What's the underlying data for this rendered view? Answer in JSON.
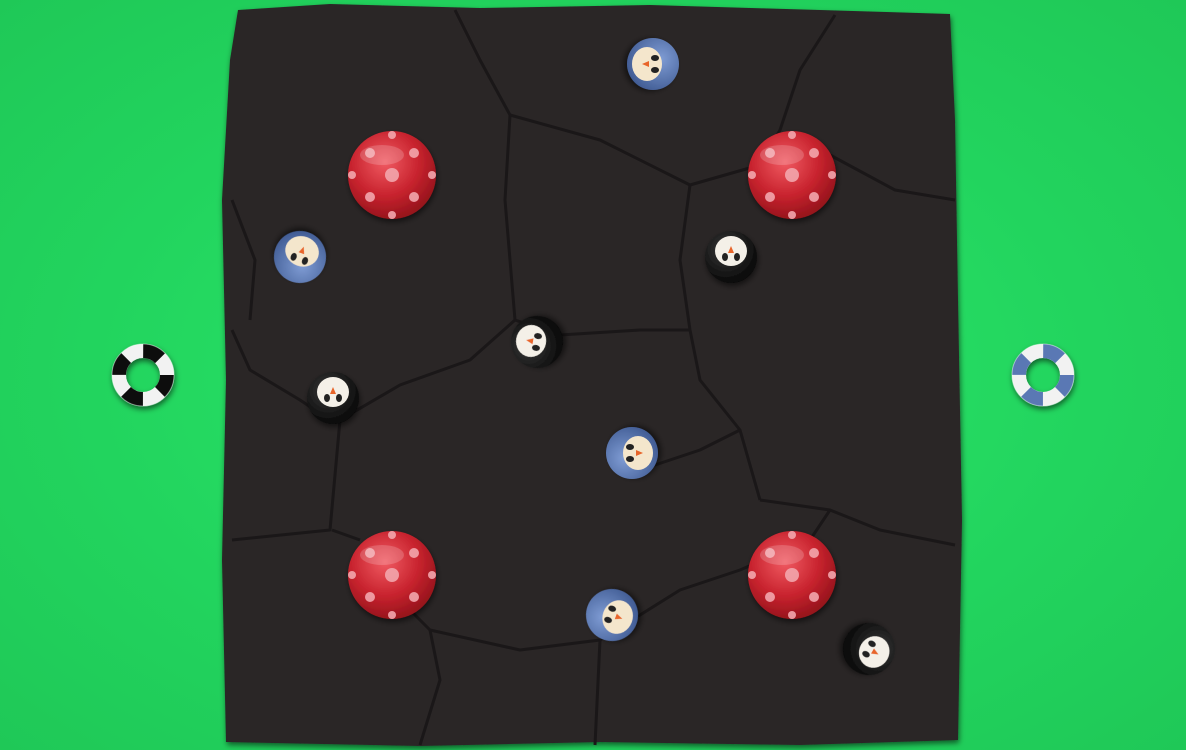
{
  "game": {
    "background_color": "#22d45e",
    "board_color": "#2a2627",
    "crack_color": "#1b1819",
    "teams": {
      "black": {
        "body_color": "#111111",
        "belly_color": "#f4f0e8",
        "ring_icon": "black-white-life-ring"
      },
      "blue": {
        "body_color": "#5a78b4",
        "belly_color": "#f4e6cc",
        "ring_icon": "blue-white-life-ring"
      }
    },
    "obstacle": {
      "name": "red-polka-dot-bumper",
      "color": "#c8232e",
      "dot_color": "#f0a0a8"
    }
  }
}
